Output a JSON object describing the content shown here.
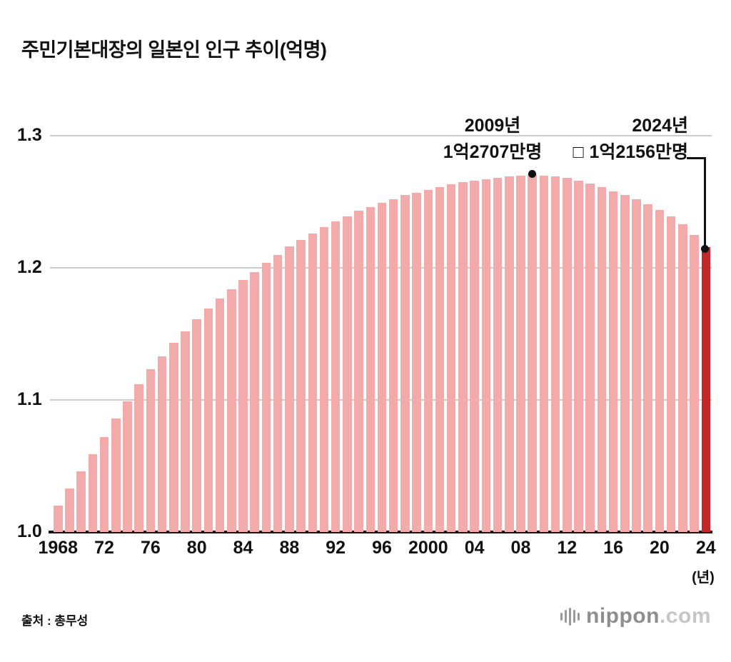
{
  "title": "주민기본대장의 일본인 인구 추이(억명)",
  "source": "출처 : 총무성",
  "unit_label": "(년)",
  "annotations": {
    "peak": {
      "line1": "2009년",
      "line2": "1억2707만명"
    },
    "glyph": "□",
    "latest": {
      "line1": "2024년",
      "line2": "1억2156만명"
    }
  },
  "logo": {
    "name": "nippon",
    "tld": ".com"
  },
  "colors": {
    "bar": "#f2aaaa",
    "highlight": "#c32727",
    "grid": "#cccccc",
    "axis": "#141414"
  },
  "chart_data": {
    "type": "bar",
    "title": "주민기본대장의 일본인 인구 추이(억명)",
    "xlabel": "(년)",
    "ylabel": "억명",
    "ylim": [
      1.0,
      1.3
    ],
    "x_start_year": 1968,
    "x_end_year": 2024,
    "x_tick_labels": [
      "1968",
      "72",
      "76",
      "80",
      "84",
      "88",
      "92",
      "96",
      "2000",
      "04",
      "08",
      "12",
      "16",
      "20",
      "24"
    ],
    "x_tick_indices": [
      0,
      4,
      8,
      12,
      16,
      20,
      24,
      28,
      32,
      36,
      40,
      44,
      48,
      52,
      56
    ],
    "y_ticks": [
      1.0,
      1.1,
      1.2,
      1.3
    ],
    "y_tick_labels": [
      "1.0",
      "1.1",
      "1.2",
      "1.3"
    ],
    "y_gridline_values": [
      1.1,
      1.2,
      1.3
    ],
    "values": [
      1.02,
      1.033,
      1.046,
      1.059,
      1.072,
      1.086,
      1.099,
      1.112,
      1.123,
      1.133,
      1.143,
      1.152,
      1.161,
      1.169,
      1.177,
      1.184,
      1.191,
      1.197,
      1.204,
      1.21,
      1.216,
      1.221,
      1.226,
      1.231,
      1.235,
      1.239,
      1.243,
      1.246,
      1.249,
      1.252,
      1.255,
      1.257,
      1.259,
      1.261,
      1.263,
      1.265,
      1.266,
      1.267,
      1.268,
      1.269,
      1.27,
      1.2707,
      1.27,
      1.269,
      1.268,
      1.266,
      1.264,
      1.261,
      1.258,
      1.255,
      1.252,
      1.248,
      1.244,
      1.239,
      1.233,
      1.225,
      1.2156
    ],
    "peak_index": 41,
    "peak_value_label": "1억2707만명",
    "highlight_index": 56,
    "highlight_value_label": "1억2156만명",
    "legend": false,
    "grid": true
  }
}
